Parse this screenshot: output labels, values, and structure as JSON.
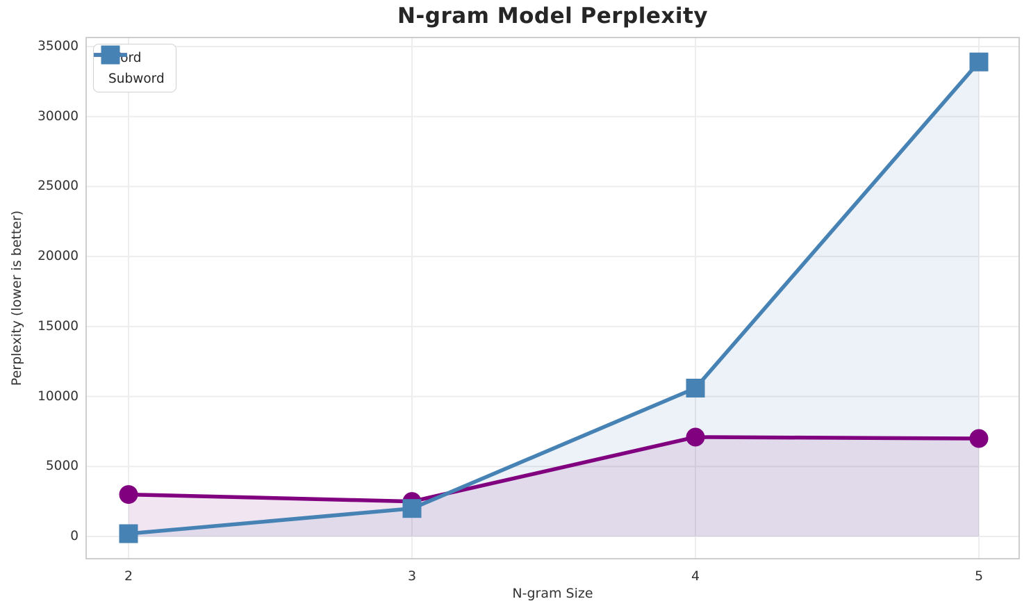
{
  "chart_data": {
    "type": "line",
    "title": "N-gram Model Perplexity",
    "xlabel": "N-gram Size",
    "ylabel": "Perplexity (lower is better)",
    "x": [
      2,
      3,
      4,
      5
    ],
    "xticks": [
      2,
      3,
      4,
      5
    ],
    "series": [
      {
        "name": "Word",
        "marker": "circle",
        "color": "#800080",
        "values": [
          3000,
          2500,
          7100,
          7000
        ]
      },
      {
        "name": "Subword",
        "marker": "square",
        "color": "#4682b4",
        "values": [
          200,
          2000,
          10600,
          33900
        ]
      }
    ],
    "ylim": [
      0,
      35000
    ],
    "ytick_step": 5000,
    "grid": true,
    "legend_position": "upper left",
    "fill_alpha": 0.1,
    "colors": {
      "grid": "#ededed",
      "spine": "#c9c9c9",
      "tick_text": "#333333",
      "title_text": "#262626"
    }
  }
}
